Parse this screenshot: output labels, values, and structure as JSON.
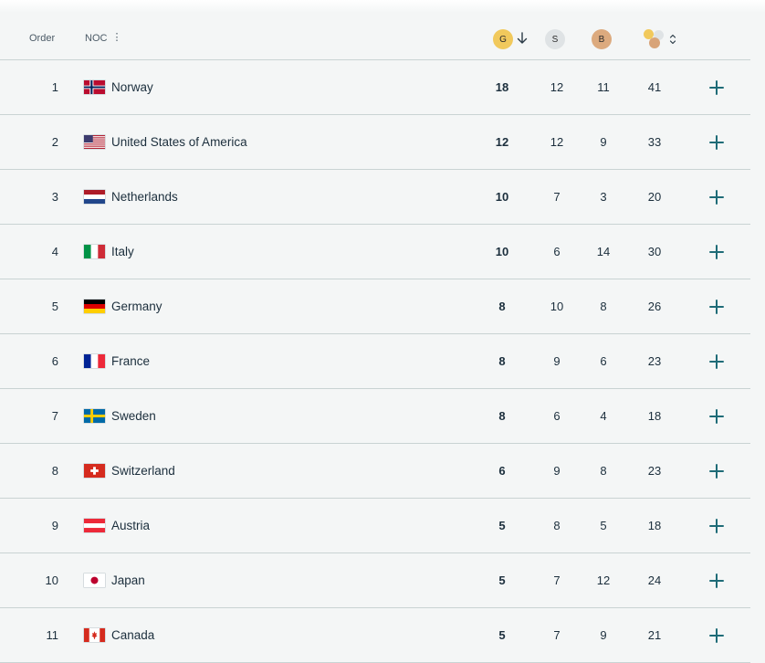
{
  "header": {
    "order_label": "Order",
    "noc_label": "NOC",
    "gold_label": "G",
    "silver_label": "S",
    "bronze_label": "B"
  },
  "colors": {
    "gold": "#f1c95c",
    "silver": "#dfe3e5",
    "bronze": "#dcaa7e",
    "accent": "#1e6b77",
    "text": "#1b2e3c"
  },
  "rows": [
    {
      "order": "1",
      "country": "Norway",
      "flag": "norway-flag-icon",
      "gold": "18",
      "silver": "12",
      "bronze": "11",
      "total": "41"
    },
    {
      "order": "2",
      "country": "United States of America",
      "flag": "usa-flag-icon",
      "gold": "12",
      "silver": "12",
      "bronze": "9",
      "total": "33"
    },
    {
      "order": "3",
      "country": "Netherlands",
      "flag": "netherlands-flag-icon",
      "gold": "10",
      "silver": "7",
      "bronze": "3",
      "total": "20"
    },
    {
      "order": "4",
      "country": "Italy",
      "flag": "italy-flag-icon",
      "gold": "10",
      "silver": "6",
      "bronze": "14",
      "total": "30"
    },
    {
      "order": "5",
      "country": "Germany",
      "flag": "germany-flag-icon",
      "gold": "8",
      "silver": "10",
      "bronze": "8",
      "total": "26"
    },
    {
      "order": "6",
      "country": "France",
      "flag": "france-flag-icon",
      "gold": "8",
      "silver": "9",
      "bronze": "6",
      "total": "23"
    },
    {
      "order": "7",
      "country": "Sweden",
      "flag": "sweden-flag-icon",
      "gold": "8",
      "silver": "6",
      "bronze": "4",
      "total": "18"
    },
    {
      "order": "8",
      "country": "Switzerland",
      "flag": "switzerland-flag-icon",
      "gold": "6",
      "silver": "9",
      "bronze": "8",
      "total": "23"
    },
    {
      "order": "9",
      "country": "Austria",
      "flag": "austria-flag-icon",
      "gold": "5",
      "silver": "8",
      "bronze": "5",
      "total": "18"
    },
    {
      "order": "10",
      "country": "Japan",
      "flag": "japan-flag-icon",
      "gold": "5",
      "silver": "7",
      "bronze": "12",
      "total": "24"
    },
    {
      "order": "11",
      "country": "Canada",
      "flag": "canada-flag-icon",
      "gold": "5",
      "silver": "7",
      "bronze": "9",
      "total": "21"
    }
  ]
}
